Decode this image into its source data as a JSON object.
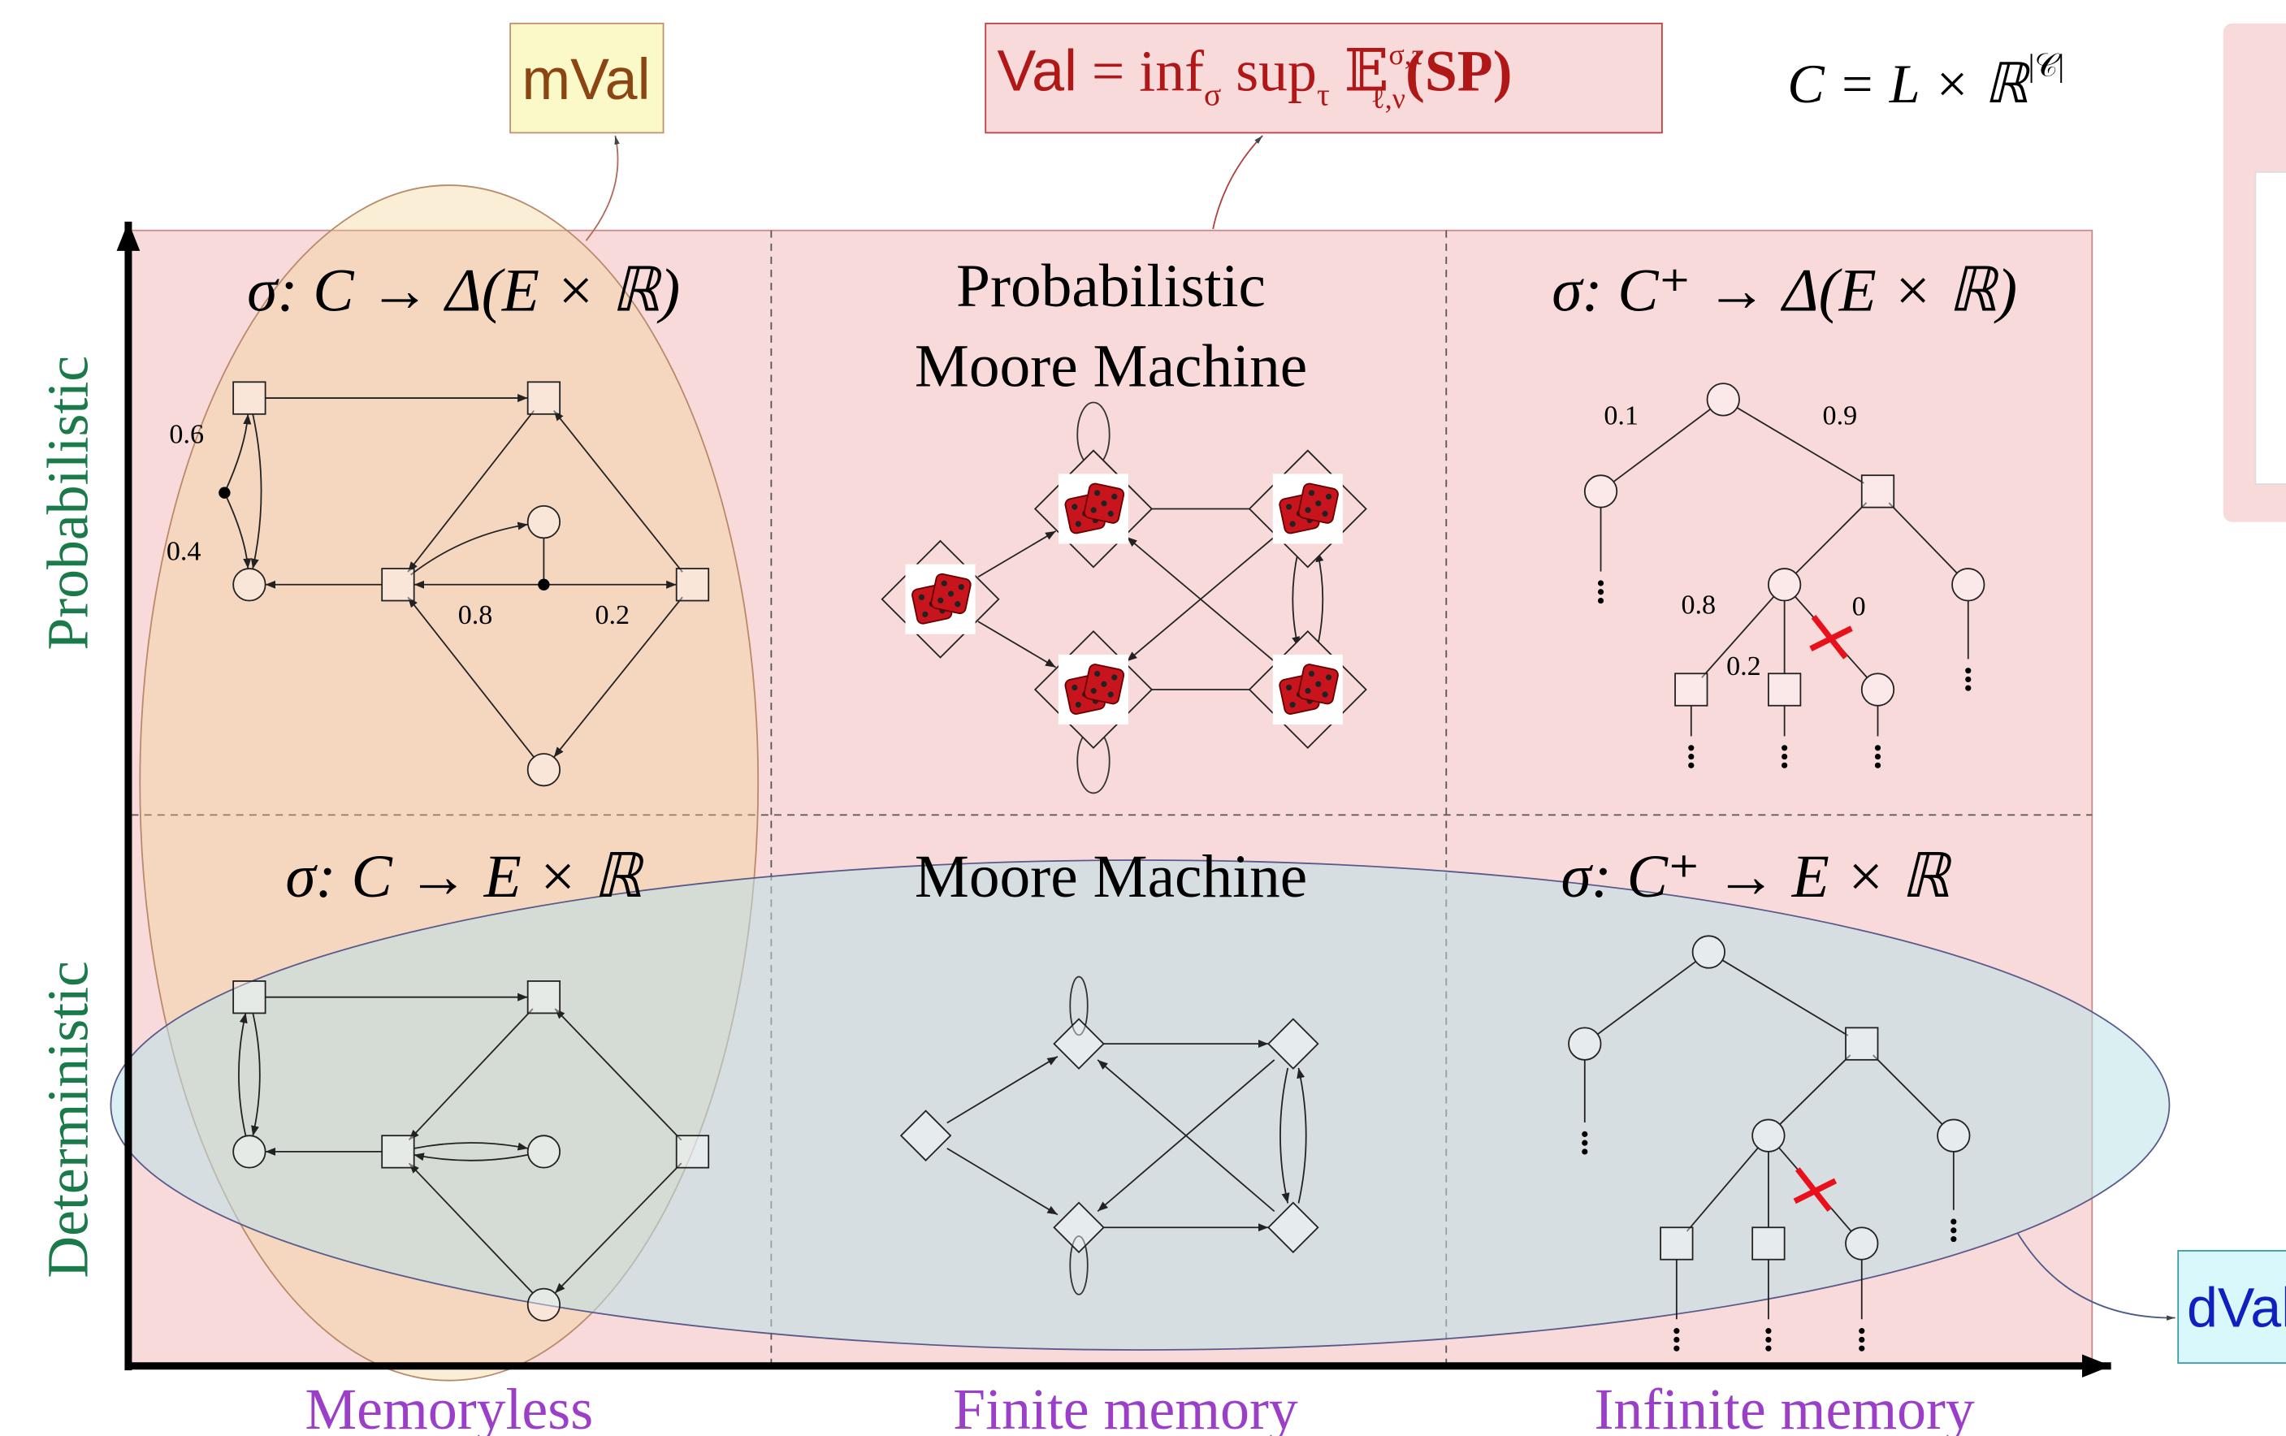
{
  "annotations": {
    "mval": "mVal",
    "val": {
      "name": "Val",
      "eq": " = inf",
      "inf_sub": "σ",
      "sup": " sup",
      "sup_sub": "τ",
      "expect": " 𝔼",
      "expect_sup": "σ,τ",
      "expect_sub": "ℓ,ν",
      "arg": "(SP)"
    },
    "state_space": {
      "main": "C = L × ℝ",
      "exponent": "|𝒞|"
    },
    "dval": "dVal"
  },
  "y_axis": {
    "top": "Probabilistic",
    "bottom": "Deterministic"
  },
  "x_axis": {
    "left": "Memoryless",
    "middle": "Finite memory",
    "right": "Infinite memory"
  },
  "cells": {
    "prob_memoryless": "σ: C → Δ(E × ℝ)",
    "prob_finite": [
      "Probabilistic",
      "Moore Machine"
    ],
    "prob_infinite": "σ: C⁺ → Δ(E × ℝ)",
    "det_memoryless": "σ: C → E × ℝ",
    "det_finite": "Moore Machine",
    "det_infinite": "σ: C⁺ → E × ℝ"
  },
  "edge_labels": {
    "memoryless": [
      "0.6",
      "0.4",
      "0.8",
      "0.2"
    ],
    "tree": [
      "0.1",
      "0.9",
      "0.8",
      "0.2",
      "0"
    ]
  }
}
